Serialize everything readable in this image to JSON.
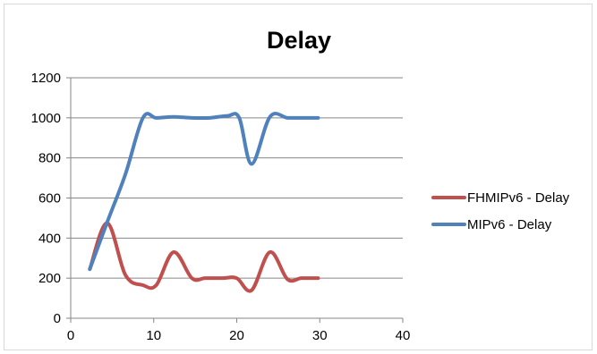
{
  "chart_data": {
    "type": "line",
    "title": "Delay",
    "xlabel": "",
    "ylabel": "",
    "xlim": [
      0,
      40
    ],
    "ylim": [
      0,
      1200
    ],
    "xticks": [
      0,
      10,
      20,
      30,
      40
    ],
    "yticks": [
      0,
      200,
      400,
      600,
      800,
      1000,
      1200
    ],
    "grid": "horizontal",
    "legend_position": "right",
    "series": [
      {
        "name": "FHMIPv6 - Delay",
        "color": "#c0504d",
        "x": [
          2.3,
          4.4,
          6.6,
          8.7,
          10.3,
          12.4,
          14.6,
          16.2,
          18.3,
          20.0,
          21.8,
          24.0,
          26.1,
          27.8,
          29.8
        ],
        "y": [
          245,
          475,
          215,
          165,
          165,
          330,
          200,
          200,
          200,
          200,
          140,
          330,
          195,
          200,
          200
        ]
      },
      {
        "name": "MIPv6  - Delay",
        "color": "#4f81bd",
        "x": [
          2.3,
          4.4,
          6.6,
          8.7,
          10.3,
          12.4,
          14.6,
          16.8,
          18.9,
          20.3,
          21.8,
          24.0,
          26.1,
          27.8,
          29.8
        ],
        "y": [
          245,
          480,
          720,
          1000,
          1000,
          1005,
          1000,
          1000,
          1010,
          1000,
          770,
          1005,
          1000,
          1000,
          1000
        ]
      }
    ]
  }
}
